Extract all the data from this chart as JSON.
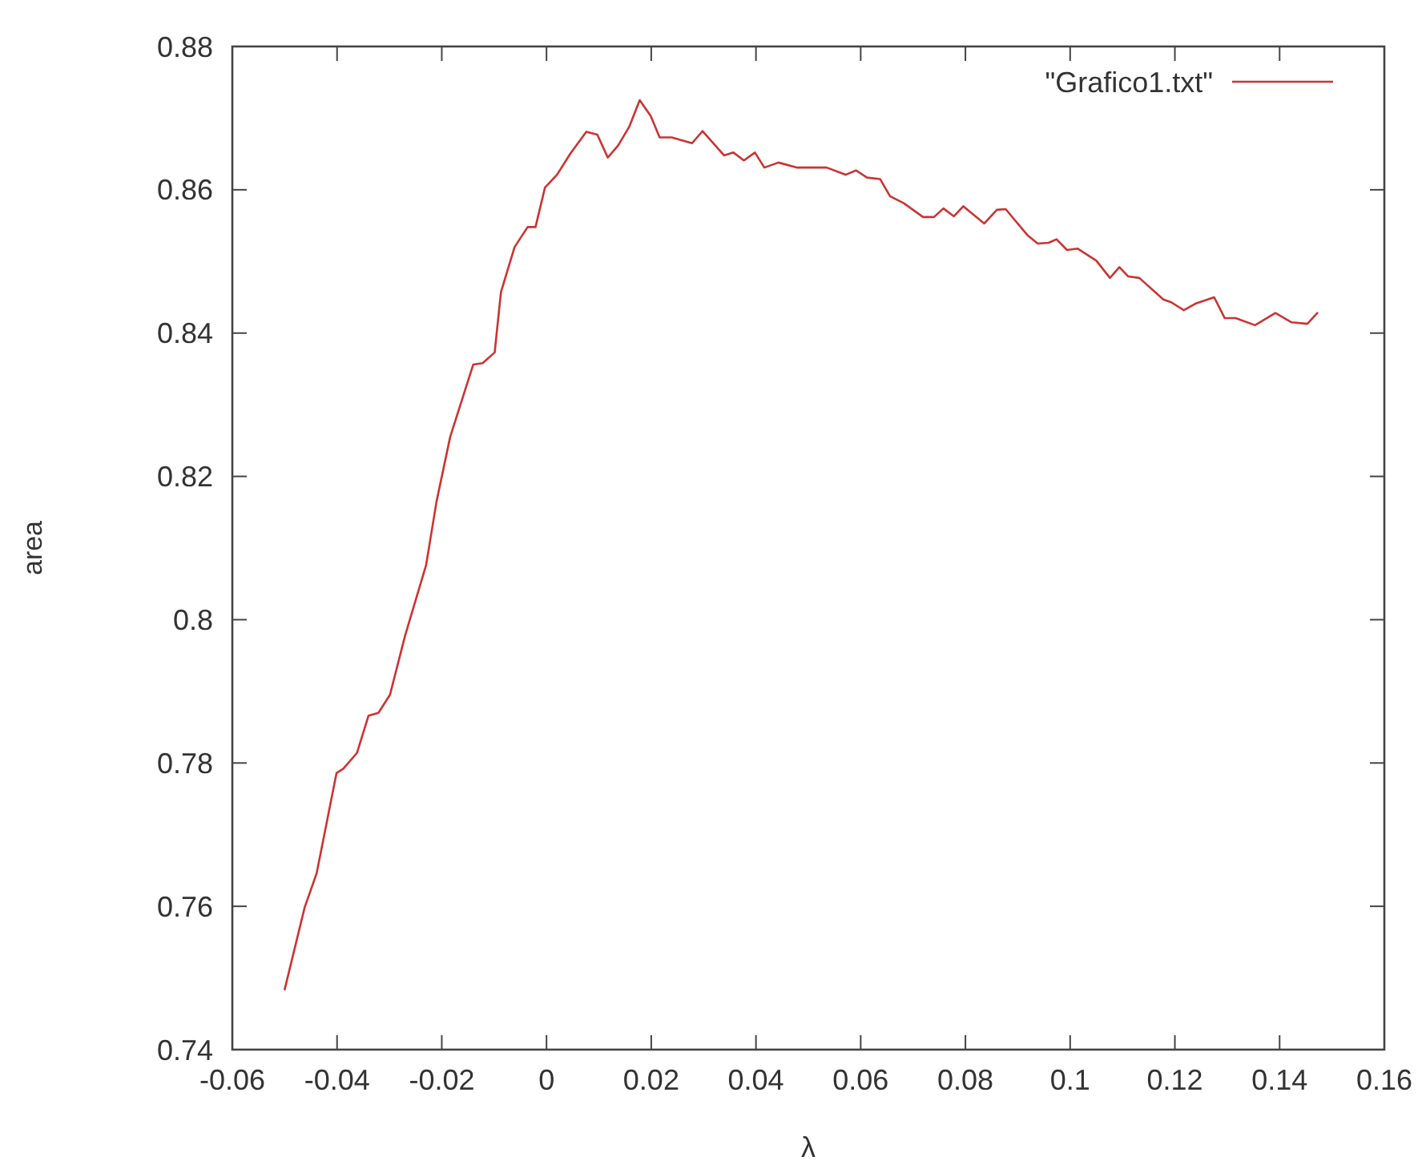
{
  "chart_data": {
    "type": "line",
    "xlabel": "λ",
    "ylabel": "area",
    "xlim": [
      -0.06,
      0.16
    ],
    "ylim": [
      0.74,
      0.88
    ],
    "xticks": [
      -0.06,
      -0.04,
      -0.02,
      0,
      0.02,
      0.04,
      0.06,
      0.08,
      0.1,
      0.12,
      0.14,
      0.16
    ],
    "yticks": [
      0.74,
      0.76,
      0.78,
      0.8,
      0.82,
      0.84,
      0.86,
      0.88
    ],
    "grid": false,
    "legend": "top right",
    "marker": "none",
    "line_style": "solid",
    "series": [
      {
        "name": "\"Grafico1.txt\"",
        "color": "#cc3333",
        "x": [
          -0.05,
          -0.0462,
          -0.0439,
          -0.0401,
          -0.0388,
          -0.0362,
          -0.034,
          -0.0321,
          -0.0299,
          -0.027,
          -0.023,
          -0.021,
          -0.0184,
          -0.014,
          -0.0122,
          -0.0099,
          -0.0087,
          -0.0061,
          -0.0036,
          -0.0021,
          -0.0003,
          0.002,
          0.0046,
          0.0076,
          0.0097,
          0.0117,
          0.0137,
          0.0158,
          0.0178,
          0.0199,
          0.0216,
          0.0239,
          0.0278,
          0.0298,
          0.0339,
          0.0357,
          0.0377,
          0.0398,
          0.0416,
          0.0443,
          0.0479,
          0.0535,
          0.0571,
          0.0591,
          0.0612,
          0.0637,
          0.0656,
          0.0683,
          0.0719,
          0.074,
          0.0758,
          0.0778,
          0.0796,
          0.0836,
          0.086,
          0.0877,
          0.0918,
          0.0938,
          0.0959,
          0.0974,
          0.0994,
          0.1014,
          0.105,
          0.1076,
          0.1094,
          0.1111,
          0.1132,
          0.1178,
          0.1193,
          0.1217,
          0.1239,
          0.1275,
          0.1295,
          0.1316,
          0.1353,
          0.1392,
          0.1423,
          0.1453,
          0.1472
        ],
        "values": [
          0.7484,
          0.7598,
          0.7646,
          0.7786,
          0.7792,
          0.7814,
          0.7866,
          0.787,
          0.7895,
          0.7978,
          0.8076,
          0.8165,
          0.8255,
          0.8356,
          0.8358,
          0.8373,
          0.8457,
          0.852,
          0.8548,
          0.8548,
          0.8603,
          0.8621,
          0.8651,
          0.8681,
          0.8677,
          0.8645,
          0.8662,
          0.8688,
          0.8725,
          0.8703,
          0.8673,
          0.8673,
          0.8665,
          0.8682,
          0.8648,
          0.8652,
          0.8641,
          0.8652,
          0.8631,
          0.8638,
          0.8631,
          0.8631,
          0.8621,
          0.8627,
          0.8617,
          0.8615,
          0.8591,
          0.8581,
          0.8562,
          0.8562,
          0.8574,
          0.8563,
          0.8577,
          0.8553,
          0.8572,
          0.8573,
          0.8537,
          0.8525,
          0.8526,
          0.8531,
          0.8516,
          0.8518,
          0.8501,
          0.8477,
          0.8492,
          0.8479,
          0.8477,
          0.8447,
          0.8443,
          0.8432,
          0.8441,
          0.845,
          0.8421,
          0.8421,
          0.8411,
          0.8428,
          0.8415,
          0.8413,
          0.8428
        ]
      }
    ]
  }
}
